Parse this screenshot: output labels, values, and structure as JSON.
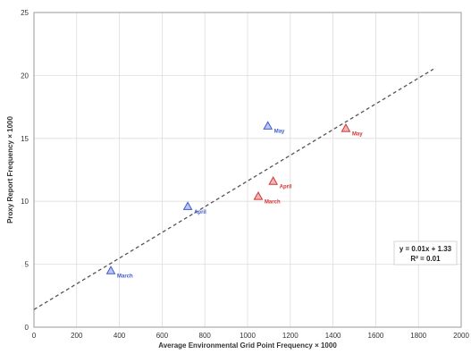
{
  "chart_data": {
    "type": "scatter",
    "title": "",
    "xlabel": "Average Environmental Grid Point Frequency × 1000",
    "ylabel": "Proxy Report Frequency × 1000",
    "xlim": [
      0,
      2000
    ],
    "ylim": [
      0,
      25
    ],
    "xticks": [
      "0",
      "200",
      "400",
      "600",
      "800",
      "1000",
      "1200",
      "1400",
      "1600",
      "1800",
      "2000"
    ],
    "yticks": [
      "0",
      "5",
      "10",
      "15",
      "20",
      "25"
    ],
    "grid": true,
    "series": [
      {
        "color": "#3b5bd6",
        "marker": "triangle",
        "points": [
          {
            "label": "March",
            "x": 360,
            "y": 4.5
          },
          {
            "label": "April",
            "x": 720,
            "y": 9.6
          },
          {
            "label": "May",
            "x": 1095,
            "y": 16.0
          }
        ]
      },
      {
        "color": "#d63232",
        "marker": "triangle",
        "points": [
          {
            "label": "March",
            "x": 1050,
            "y": 10.4
          },
          {
            "label": "April",
            "x": 1120,
            "y": 11.6
          },
          {
            "label": "May",
            "x": 1460,
            "y": 15.8
          }
        ]
      }
    ],
    "trendline": {
      "equation": "y = 0.01x + 1.33",
      "r2": "R² = 0.01",
      "style": "dashed",
      "color": "#555555",
      "x_range": [
        0,
        1870
      ],
      "y_range": [
        1.4,
        20.5
      ]
    }
  }
}
